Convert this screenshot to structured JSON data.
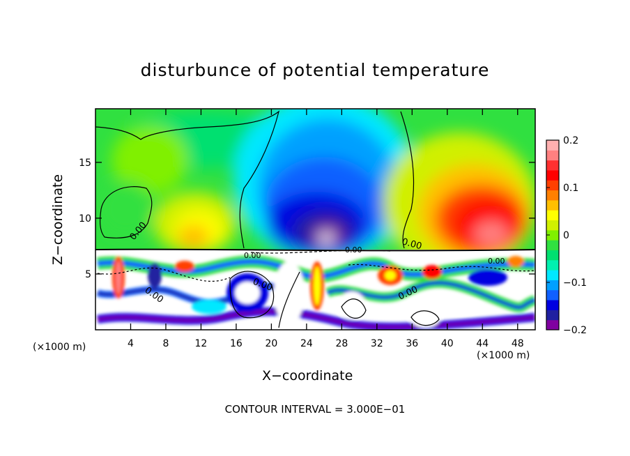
{
  "chart_data": {
    "type": "heatmap",
    "title": "disturbunce of potential temperature",
    "xlabel": "X−coordinate",
    "ylabel": "Z−coordinate",
    "x_unit_label": "(×1000 m)",
    "x_ticks": [
      "4",
      "8",
      "12",
      "16",
      "20",
      "24",
      "28",
      "32",
      "36",
      "40",
      "44",
      "48"
    ],
    "y_ticks": [
      "5",
      "10",
      "15"
    ],
    "xlim": [
      0,
      50
    ],
    "ylim": [
      0,
      19.8
    ],
    "footer": "CONTOUR INTERVAL = 3.000E−01",
    "colorbar": {
      "range": [
        -0.2,
        0.2
      ],
      "tick_labels": [
        "0.2",
        "0.1",
        "0",
        "−0.1",
        "−0.2"
      ],
      "tick_values": [
        0.2,
        0.1,
        0,
        -0.1,
        -0.2
      ],
      "colors": [
        "#8000a0",
        "#2020a0",
        "#0000e0",
        "#1060ff",
        "#00a0ff",
        "#00e8ff",
        "#00f0b0",
        "#00e070",
        "#30e040",
        "#80f000",
        "#d0f000",
        "#ffff00",
        "#ffc000",
        "#ff8000",
        "#ff4000",
        "#ff0000",
        "#ff3030",
        "#ff8080",
        "#ffb0b0"
      ]
    },
    "contour_labels": [
      "0.00",
      "0.00",
      "0.00",
      "0.00",
      "0.00",
      "0.00",
      "0.00",
      "0.00"
    ],
    "grid": false
  }
}
